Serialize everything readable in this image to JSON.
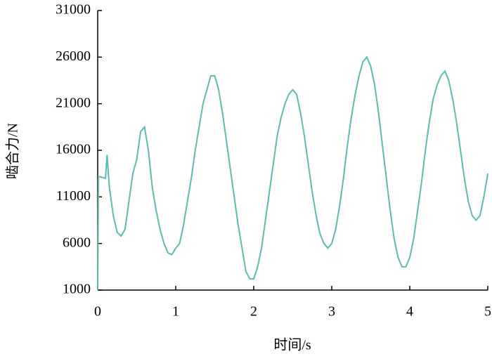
{
  "chart_data": {
    "type": "line",
    "x_label": "时间/s",
    "y_label": "啮合力/N",
    "xlim": [
      0,
      5
    ],
    "xticks": [
      0,
      1,
      2,
      3,
      4,
      5
    ],
    "ylim": [
      1000,
      31000
    ],
    "yticks": [
      1000,
      6000,
      11000,
      16000,
      21000,
      26000,
      31000
    ],
    "x": [
      0,
      0.01,
      0.1,
      0.12,
      0.15,
      0.2,
      0.25,
      0.3,
      0.35,
      0.4,
      0.45,
      0.5,
      0.55,
      0.6,
      0.65,
      0.7,
      0.75,
      0.8,
      0.85,
      0.9,
      0.95,
      1.0,
      1.05,
      1.1,
      1.15,
      1.2,
      1.25,
      1.3,
      1.35,
      1.4,
      1.45,
      1.5,
      1.55,
      1.6,
      1.65,
      1.7,
      1.75,
      1.8,
      1.85,
      1.9,
      1.95,
      2.0,
      2.05,
      2.1,
      2.15,
      2.2,
      2.25,
      2.3,
      2.35,
      2.4,
      2.45,
      2.5,
      2.55,
      2.6,
      2.65,
      2.7,
      2.75,
      2.8,
      2.85,
      2.9,
      2.95,
      3.0,
      3.05,
      3.1,
      3.15,
      3.2,
      3.25,
      3.3,
      3.35,
      3.4,
      3.45,
      3.5,
      3.55,
      3.6,
      3.65,
      3.7,
      3.75,
      3.8,
      3.85,
      3.9,
      3.95,
      4.0,
      4.05,
      4.1,
      4.15,
      4.2,
      4.25,
      4.3,
      4.35,
      4.4,
      4.45,
      4.5,
      4.55,
      4.6,
      4.65,
      4.7,
      4.75,
      4.8,
      4.85,
      4.9,
      4.95,
      5.0
    ],
    "series": [
      {
        "name": "啮合力",
        "color": "#5bbcb0",
        "values": [
          1000,
          13200,
          13000,
          15500,
          12000,
          9000,
          7200,
          6800,
          7500,
          10500,
          13500,
          15000,
          18000,
          18500,
          16000,
          12000,
          9500,
          7500,
          6000,
          5000,
          4800,
          5500,
          6000,
          8000,
          10500,
          13000,
          16000,
          18500,
          21000,
          22500,
          24000,
          24000,
          22500,
          20000,
          17000,
          14000,
          11000,
          8000,
          5500,
          3000,
          2200,
          2200,
          3500,
          5500,
          8500,
          11500,
          14500,
          17500,
          19500,
          21000,
          22000,
          22500,
          22000,
          20000,
          17500,
          14500,
          11500,
          9000,
          7000,
          6000,
          5500,
          6000,
          7500,
          10000,
          13000,
          16500,
          19500,
          22000,
          24000,
          25500,
          26000,
          25000,
          23000,
          20000,
          16500,
          13000,
          9500,
          6500,
          4500,
          3500,
          3500,
          4500,
          6500,
          9500,
          12500,
          16000,
          19000,
          21500,
          23000,
          24000,
          24500,
          23500,
          21500,
          19000,
          16000,
          13000,
          10500,
          9000,
          8500,
          9000,
          11000,
          13500
        ]
      }
    ]
  }
}
